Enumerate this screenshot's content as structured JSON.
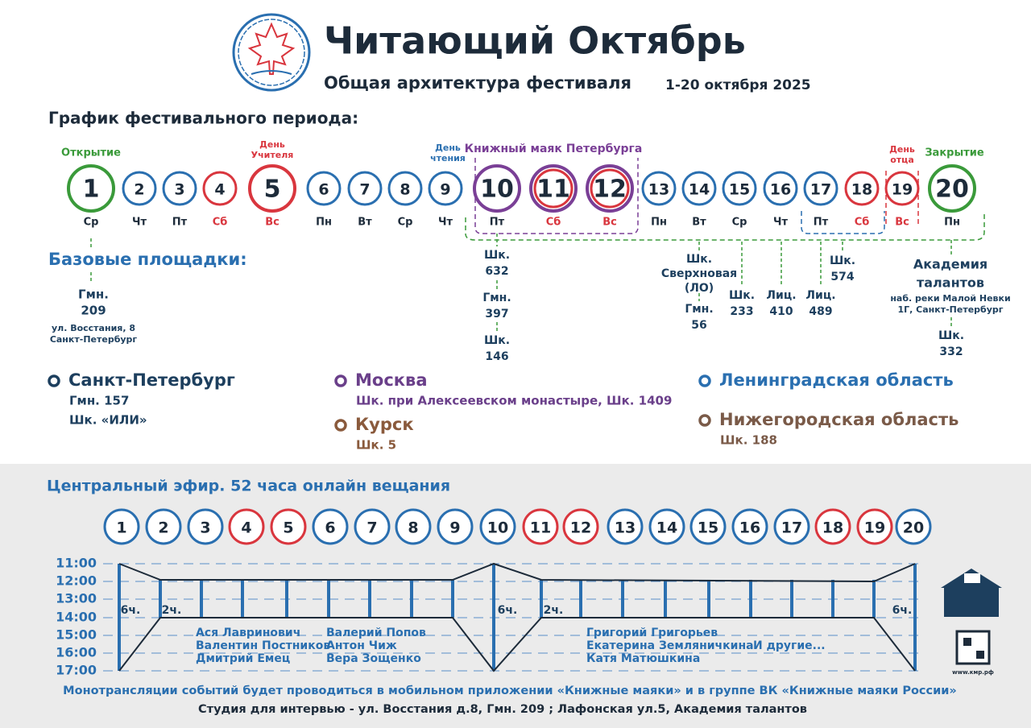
{
  "header": {
    "title": "Читающий Октябрь",
    "subtitle": "Общая архитектура фестиваля",
    "dates": "1-20 октября 2025"
  },
  "schedule": {
    "heading": "График фестивального периода:",
    "days": [
      {
        "number": "1",
        "weekday": "Ср",
        "ring": "#3a9a3a",
        "big": true
      },
      {
        "number": "2",
        "weekday": "Чт",
        "ring": "#2a6fb0"
      },
      {
        "number": "3",
        "weekday": "Пт",
        "ring": "#2a6fb0"
      },
      {
        "number": "4",
        "weekday": "Сб",
        "ring": "#d9363e"
      },
      {
        "number": "5",
        "weekday": "Вс",
        "ring": "#d9363e",
        "big": true
      },
      {
        "number": "6",
        "weekday": "Пн",
        "ring": "#2a6fb0"
      },
      {
        "number": "7",
        "weekday": "Вт",
        "ring": "#2a6fb0"
      },
      {
        "number": "8",
        "weekday": "Ср",
        "ring": "#2a6fb0"
      },
      {
        "number": "9",
        "weekday": "Чт",
        "ring": "#2a6fb0"
      },
      {
        "number": "10",
        "weekday": "Пт",
        "ring": "#7a3f96",
        "big": true
      },
      {
        "number": "11",
        "weekday": "Сб",
        "ring": "#7a3f96",
        "inner": "#d9363e",
        "big": true
      },
      {
        "number": "12",
        "weekday": "Вс",
        "ring": "#7a3f96",
        "inner": "#d9363e",
        "big": true
      },
      {
        "number": "13",
        "weekday": "Пн",
        "ring": "#2a6fb0"
      },
      {
        "number": "14",
        "weekday": "Вт",
        "ring": "#2a6fb0"
      },
      {
        "number": "15",
        "weekday": "Ср",
        "ring": "#2a6fb0"
      },
      {
        "number": "16",
        "weekday": "Чт",
        "ring": "#2a6fb0"
      },
      {
        "number": "17",
        "weekday": "Пт",
        "ring": "#2a6fb0"
      },
      {
        "number": "18",
        "weekday": "Сб",
        "ring": "#d9363e"
      },
      {
        "number": "19",
        "weekday": "Вс",
        "ring": "#d9363e"
      },
      {
        "number": "20",
        "weekday": "Пн",
        "ring": "#3a9a3a",
        "big": true
      }
    ],
    "events": [
      {
        "lines": [
          "Открытие"
        ],
        "color": "#3a9a3a"
      },
      {
        "lines": [
          "День",
          "Учителя"
        ],
        "color": "#d9363e"
      },
      {
        "lines": [
          "День",
          "чтения"
        ],
        "color": "#2a6fb0"
      },
      {
        "lines": [
          "Книжный маяк Петербурга"
        ],
        "color": "#7a3f96"
      },
      {
        "lines": [
          "День",
          "отца"
        ],
        "color": "#d9363e"
      },
      {
        "lines": [
          "Закрытие"
        ],
        "color": "#3a9a3a"
      }
    ]
  },
  "venues": {
    "heading": "Базовые площадки:",
    "items": [
      {
        "lines": [
          "Гмн.",
          "209"
        ]
      },
      {
        "lines": [
          "ул. Восстания, 8",
          "Санкт-Петербург"
        ]
      },
      {
        "lines": [
          "Шк.",
          "632"
        ]
      },
      {
        "lines": [
          "Гмн.",
          "397"
        ]
      },
      {
        "lines": [
          "Шк.",
          "146"
        ]
      },
      {
        "lines": [
          "Шк.",
          "Сверхновая",
          "(ЛО)"
        ]
      },
      {
        "lines": [
          "Гмн.",
          "56"
        ]
      },
      {
        "lines": [
          "Шк.",
          "233"
        ]
      },
      {
        "lines": [
          "Лиц.",
          "410"
        ]
      },
      {
        "lines": [
          "Лиц.",
          "489"
        ]
      },
      {
        "lines": [
          "Шк.",
          "574"
        ]
      },
      {
        "lines": [
          "Академия",
          "талантов"
        ]
      },
      {
        "lines": [
          "наб. реки Малой Невки",
          "1Г, Санкт-Петербург"
        ]
      },
      {
        "lines": [
          "Шк.",
          "332"
        ]
      }
    ]
  },
  "regions": [
    {
      "name": "Санкт-Петербург",
      "color": "#1d3f5e",
      "items": [
        "Гмн. 157",
        "Шк. «ИЛИ»"
      ]
    },
    {
      "name": "Москва",
      "color": "#6a3f8a",
      "items": [
        "Шк. при Алексеевском монастыре, Шк. 1409"
      ]
    },
    {
      "name": "Курск",
      "color": "#8a5a3c",
      "items": [
        "Шк. 5"
      ]
    },
    {
      "name": "Ленинградская область",
      "color": "#2a6fb0",
      "items": []
    },
    {
      "name": "Нижегородская область",
      "color": "#7a5a48",
      "items": [
        "Шк. 188"
      ]
    }
  ],
  "broadcast": {
    "heading": "Центральный эфир.  52 часа онлайн вещания",
    "days": [
      {
        "number": "1",
        "color": "#2a6fb0"
      },
      {
        "number": "2",
        "color": "#2a6fb0"
      },
      {
        "number": "3",
        "color": "#2a6fb0"
      },
      {
        "number": "4",
        "color": "#d9363e"
      },
      {
        "number": "5",
        "color": "#d9363e"
      },
      {
        "number": "6",
        "color": "#2a6fb0"
      },
      {
        "number": "7",
        "color": "#2a6fb0"
      },
      {
        "number": "8",
        "color": "#2a6fb0"
      },
      {
        "number": "9",
        "color": "#2a6fb0"
      },
      {
        "number": "10",
        "color": "#2a6fb0"
      },
      {
        "number": "11",
        "color": "#d9363e"
      },
      {
        "number": "12",
        "color": "#d9363e"
      },
      {
        "number": "13",
        "color": "#2a6fb0"
      },
      {
        "number": "14",
        "color": "#2a6fb0"
      },
      {
        "number": "15",
        "color": "#2a6fb0"
      },
      {
        "number": "16",
        "color": "#2a6fb0"
      },
      {
        "number": "17",
        "color": "#2a6fb0"
      },
      {
        "number": "18",
        "color": "#d9363e"
      },
      {
        "number": "19",
        "color": "#d9363e"
      },
      {
        "number": "20",
        "color": "#2a6fb0"
      }
    ],
    "times": [
      "11:00",
      "12:00",
      "13:00",
      "14:00",
      "15:00",
      "16:00",
      "17:00"
    ],
    "durations": [
      "6ч.",
      "2ч.",
      "6ч.",
      "2ч.",
      "6ч."
    ],
    "guests": [
      [
        "Ася Лавринович",
        "Валентин Постников",
        "Дмитрий Емец"
      ],
      [
        "Валерий Попов",
        "Антон Чиж",
        "Вера Зощенко"
      ],
      [
        "Григорий Григорьев",
        "Екатерина Земляничкина",
        "Катя Матюшкина"
      ],
      [
        "И другие..."
      ]
    ],
    "notes": [
      "Монотрансляции событий будет проводиться в мобильном приложении «Книжные маяки» и в группе ВК «Книжные маяки России»",
      "Студия для интервью - ул. Восстания д.8, Гмн. 209  ;  Лафонская ул.5, Академия талантов"
    ],
    "site": "www.кмр.рф"
  }
}
